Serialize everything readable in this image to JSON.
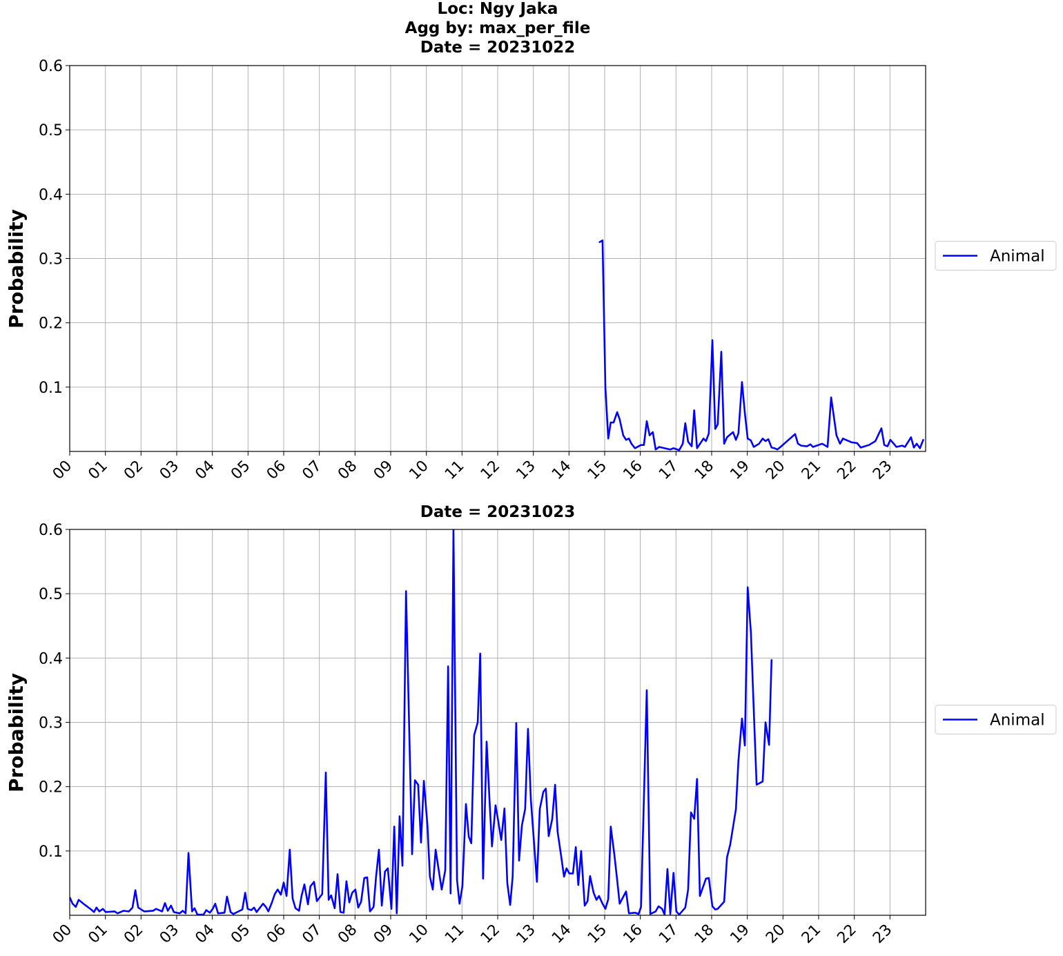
{
  "chart_data": [
    {
      "type": "line",
      "title": [
        "Loc: Ngy Jaka",
        "Agg by: max_per_file",
        "Date = 20231022"
      ],
      "ylabel": "Probability",
      "xlim": [
        0,
        24
      ],
      "ylim": [
        0,
        0.6
      ],
      "xticks": [
        {
          "value": 0,
          "label": "00"
        },
        {
          "value": 1,
          "label": "01"
        },
        {
          "value": 2,
          "label": "02"
        },
        {
          "value": 3,
          "label": "03"
        },
        {
          "value": 4,
          "label": "04"
        },
        {
          "value": 5,
          "label": "05"
        },
        {
          "value": 6,
          "label": "06"
        },
        {
          "value": 7,
          "label": "07"
        },
        {
          "value": 8,
          "label": "08"
        },
        {
          "value": 9,
          "label": "09"
        },
        {
          "value": 10,
          "label": "10"
        },
        {
          "value": 11,
          "label": "11"
        },
        {
          "value": 12,
          "label": "12"
        },
        {
          "value": 13,
          "label": "13"
        },
        {
          "value": 14,
          "label": "14"
        },
        {
          "value": 15,
          "label": "15"
        },
        {
          "value": 16,
          "label": "16"
        },
        {
          "value": 17,
          "label": "17"
        },
        {
          "value": 18,
          "label": "18"
        },
        {
          "value": 19,
          "label": "19"
        },
        {
          "value": 20,
          "label": "20"
        },
        {
          "value": 21,
          "label": "21"
        },
        {
          "value": 22,
          "label": "22"
        },
        {
          "value": 23,
          "label": "23"
        }
      ],
      "yticks": [
        0.1,
        0.2,
        0.3,
        0.4,
        0.5,
        0.6
      ],
      "grid": true,
      "legend": "right",
      "series": [
        {
          "name": "Animal",
          "color": "#0000ff",
          "x": [
            14.84,
            14.94,
            15.02,
            15.1,
            15.17,
            15.25,
            15.35,
            15.42,
            15.52,
            15.6,
            15.68,
            15.75,
            15.85,
            15.95,
            16.02,
            16.1,
            16.18,
            16.26,
            16.35,
            16.43,
            16.53,
            16.68,
            16.84,
            16.93,
            17.09,
            17.19,
            17.26,
            17.34,
            17.44,
            17.51,
            17.59,
            17.77,
            17.84,
            17.92,
            18.02,
            18.1,
            18.17,
            18.27,
            18.35,
            18.43,
            18.6,
            18.68,
            18.75,
            18.85,
            18.93,
            19.01,
            19.1,
            19.18,
            19.33,
            19.43,
            19.51,
            19.59,
            19.68,
            19.76,
            19.84,
            19.93,
            20.34,
            20.42,
            20.51,
            20.67,
            20.77,
            20.84,
            21.1,
            21.25,
            21.35,
            21.5,
            21.6,
            21.68,
            21.93,
            22.08,
            22.18,
            22.41,
            22.59,
            22.76,
            22.84,
            22.93,
            23.01,
            23.09,
            23.18,
            23.34,
            23.42,
            23.59,
            23.67,
            23.75,
            23.84,
            23.94
          ],
          "values": [
            0.325,
            0.328,
            0.1,
            0.02,
            0.045,
            0.045,
            0.061,
            0.05,
            0.025,
            0.018,
            0.02,
            0.012,
            0.005,
            0.008,
            0.01,
            0.01,
            0.047,
            0.025,
            0.03,
            0.003,
            0.007,
            0.005,
            0.003,
            0.005,
            0.002,
            0.012,
            0.044,
            0.015,
            0.008,
            0.064,
            0.005,
            0.02,
            0.016,
            0.028,
            0.173,
            0.035,
            0.042,
            0.155,
            0.012,
            0.022,
            0.03,
            0.018,
            0.028,
            0.108,
            0.06,
            0.02,
            0.017,
            0.007,
            0.012,
            0.02,
            0.016,
            0.019,
            0.006,
            0.005,
            0.003,
            0.007,
            0.027,
            0.012,
            0.009,
            0.008,
            0.011,
            0.007,
            0.012,
            0.007,
            0.084,
            0.025,
            0.012,
            0.02,
            0.014,
            0.013,
            0.006,
            0.01,
            0.016,
            0.036,
            0.01,
            0.008,
            0.018,
            0.013,
            0.007,
            0.009,
            0.007,
            0.022,
            0.006,
            0.012,
            0.005,
            0.019
          ]
        }
      ]
    },
    {
      "type": "line",
      "title": [
        "Date = 20231023"
      ],
      "ylabel": "Probability",
      "xlim": [
        0,
        24
      ],
      "ylim": [
        0,
        0.6
      ],
      "xticks": [
        {
          "value": 0,
          "label": "00"
        },
        {
          "value": 1,
          "label": "01"
        },
        {
          "value": 2,
          "label": "02"
        },
        {
          "value": 3,
          "label": "03"
        },
        {
          "value": 4,
          "label": "04"
        },
        {
          "value": 5,
          "label": "05"
        },
        {
          "value": 6,
          "label": "06"
        },
        {
          "value": 7,
          "label": "07"
        },
        {
          "value": 8,
          "label": "08"
        },
        {
          "value": 9,
          "label": "09"
        },
        {
          "value": 10,
          "label": "10"
        },
        {
          "value": 11,
          "label": "11"
        },
        {
          "value": 12,
          "label": "12"
        },
        {
          "value": 13,
          "label": "13"
        },
        {
          "value": 14,
          "label": "14"
        },
        {
          "value": 15,
          "label": "15"
        },
        {
          "value": 16,
          "label": "16"
        },
        {
          "value": 17,
          "label": "17"
        },
        {
          "value": 18,
          "label": "18"
        },
        {
          "value": 19,
          "label": "19"
        },
        {
          "value": 20,
          "label": "20"
        },
        {
          "value": 21,
          "label": "21"
        },
        {
          "value": 22,
          "label": "22"
        },
        {
          "value": 23,
          "label": "23"
        }
      ],
      "yticks": [
        0.1,
        0.2,
        0.3,
        0.4,
        0.5,
        0.6
      ],
      "grid": true,
      "legend": "right",
      "series": [
        {
          "name": "Animal",
          "color": "#0000ff",
          "x": [
            0,
            0.08,
            0.17,
            0.25,
            0.43,
            0.6,
            0.68,
            0.75,
            0.83,
            0.93,
            1.01,
            1.26,
            1.34,
            1.51,
            1.66,
            1.76,
            1.84,
            1.92,
            2.09,
            2.34,
            2.42,
            2.59,
            2.67,
            2.75,
            2.84,
            2.92,
            3.08,
            3.17,
            3.25,
            3.33,
            3.43,
            3.5,
            3.58,
            3.75,
            3.83,
            3.93,
            4.01,
            4.08,
            4.16,
            4.34,
            4.41,
            4.51,
            4.59,
            4.84,
            4.92,
            4.99,
            5.09,
            5.17,
            5.24,
            5.42,
            5.5,
            5.57,
            5.67,
            5.75,
            5.83,
            5.92,
            6.0,
            6.08,
            6.17,
            6.25,
            6.33,
            6.43,
            6.5,
            6.58,
            6.68,
            6.75,
            6.85,
            6.93,
            7.08,
            7.18,
            7.26,
            7.33,
            7.43,
            7.51,
            7.59,
            7.68,
            7.76,
            7.84,
            7.92,
            8.01,
            8.09,
            8.17,
            8.26,
            8.34,
            8.42,
            8.52,
            8.59,
            8.67,
            8.75,
            8.84,
            8.92,
            9.02,
            9.1,
            9.17,
            9.25,
            9.33,
            9.43,
            9.6,
            9.68,
            9.77,
            9.85,
            9.93,
            10.03,
            10.1,
            10.18,
            10.26,
            10.43,
            10.53,
            10.61,
            10.68,
            10.76,
            10.86,
            10.93,
            11.01,
            11.11,
            11.19,
            11.26,
            11.34,
            11.44,
            11.51,
            11.59,
            11.69,
            11.77,
            11.84,
            11.94,
            12.02,
            12.1,
            12.19,
            12.27,
            12.35,
            12.42,
            12.52,
            12.6,
            12.68,
            12.77,
            12.85,
            12.93,
            13.1,
            13.18,
            13.28,
            13.35,
            13.43,
            13.53,
            13.61,
            13.68,
            13.78,
            13.86,
            13.93,
            14.01,
            14.11,
            14.19,
            14.26,
            14.34,
            14.44,
            14.52,
            14.59,
            14.69,
            14.77,
            14.84,
            14.94,
            15.02,
            15.1,
            15.17,
            15.27,
            15.35,
            15.42,
            15.6,
            15.68,
            15.85,
            15.95,
            16.02,
            16.18,
            16.28,
            16.43,
            16.51,
            16.61,
            16.68,
            16.76,
            16.84,
            16.93,
            17.01,
            17.09,
            17.26,
            17.34,
            17.42,
            17.51,
            17.59,
            17.67,
            17.84,
            17.92,
            18.02,
            18.1,
            18.17,
            18.35,
            18.43,
            18.52,
            18.68,
            18.75,
            18.85,
            18.93,
            19.01,
            19.1,
            19.18,
            19.26,
            19.43,
            19.51,
            19.61,
            19.68
          ],
          "values": [
            0.028,
            0.018,
            0.013,
            0.024,
            0.016,
            0.009,
            0.005,
            0.012,
            0.006,
            0.01,
            0.005,
            0.006,
            0.003,
            0.007,
            0.006,
            0.012,
            0.039,
            0.012,
            0.006,
            0.007,
            0.01,
            0.006,
            0.019,
            0.007,
            0.015,
            0.005,
            0.003,
            0.007,
            0.003,
            0.097,
            0.006,
            0.011,
            0.001,
            0.001,
            0.008,
            0.004,
            0.01,
            0.018,
            0.003,
            0.004,
            0.029,
            0.005,
            0.002,
            0.009,
            0.035,
            0.01,
            0.008,
            0.012,
            0.005,
            0.018,
            0.013,
            0.006,
            0.02,
            0.033,
            0.04,
            0.032,
            0.051,
            0.03,
            0.102,
            0.026,
            0.011,
            0.007,
            0.03,
            0.048,
            0.017,
            0.045,
            0.052,
            0.022,
            0.033,
            0.222,
            0.024,
            0.031,
            0.011,
            0.064,
            0.005,
            0.004,
            0.053,
            0.02,
            0.035,
            0.04,
            0.012,
            0.021,
            0.058,
            0.059,
            0.006,
            0.013,
            0.06,
            0.102,
            0.015,
            0.068,
            0.073,
            0.01,
            0.138,
            0.003,
            0.154,
            0.077,
            0.504,
            0.095,
            0.21,
            0.203,
            0.113,
            0.209,
            0.14,
            0.06,
            0.04,
            0.102,
            0.04,
            0.07,
            0.387,
            0.034,
            0.6,
            0.055,
            0.018,
            0.045,
            0.173,
            0.122,
            0.112,
            0.28,
            0.3,
            0.407,
            0.057,
            0.27,
            0.18,
            0.107,
            0.171,
            0.145,
            0.117,
            0.166,
            0.05,
            0.016,
            0.06,
            0.299,
            0.085,
            0.14,
            0.165,
            0.29,
            0.18,
            0.052,
            0.165,
            0.192,
            0.197,
            0.123,
            0.15,
            0.203,
            0.13,
            0.092,
            0.06,
            0.073,
            0.065,
            0.065,
            0.106,
            0.047,
            0.1,
            0.015,
            0.022,
            0.061,
            0.035,
            0.024,
            0.03,
            0.018,
            0.01,
            0.025,
            0.138,
            0.095,
            0.055,
            0.018,
            0.037,
            0.003,
            0.004,
            0.002,
            0.013,
            0.35,
            0.002,
            0.006,
            0.014,
            0.01,
            0.001,
            0.072,
            0.002,
            0.066,
            0.006,
            0.001,
            0.012,
            0.04,
            0.16,
            0.15,
            0.212,
            0.03,
            0.057,
            0.058,
            0.014,
            0.009,
            0.01,
            0.021,
            0.09,
            0.11,
            0.165,
            0.24,
            0.306,
            0.264,
            0.51,
            0.44,
            0.32,
            0.203,
            0.208,
            0.3,
            0.265,
            0.398
          ]
        }
      ]
    }
  ]
}
